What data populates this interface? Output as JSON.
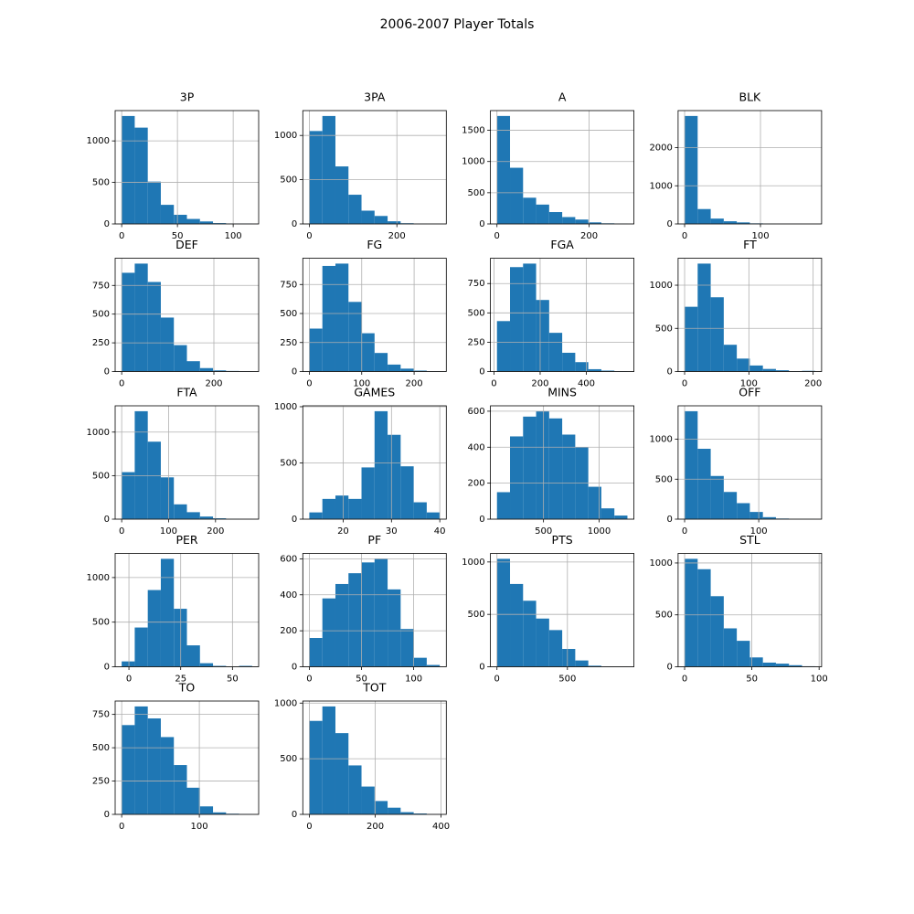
{
  "title": "2006-2007 Player Totals",
  "chart_data": [
    {
      "type": "histogram",
      "title": "3P",
      "color": "#1f77b4",
      "grid": true,
      "bins": [
        0,
        11.7,
        23.4,
        35.1,
        46.8,
        58.5,
        70.2,
        81.9,
        93.6,
        105.3,
        117
      ],
      "counts": [
        1300,
        1160,
        510,
        230,
        110,
        60,
        30,
        10,
        5,
        5
      ],
      "xlim": [
        -5.85,
        122.85
      ],
      "ylim": [
        0,
        1365
      ],
      "xticks": [
        0,
        50,
        100
      ],
      "yticks": [
        0,
        500,
        1000
      ]
    },
    {
      "type": "histogram",
      "title": "3PA",
      "color": "#1f77b4",
      "grid": true,
      "bins": [
        0,
        29.8,
        59.6,
        89.4,
        119.2,
        149,
        178.8,
        208.6,
        238.4,
        268.2,
        298
      ],
      "counts": [
        1050,
        1220,
        650,
        330,
        150,
        90,
        30,
        8,
        3,
        2
      ],
      "xlim": [
        -14.9,
        312.9
      ],
      "ylim": [
        0,
        1281
      ],
      "xticks": [
        0,
        200
      ],
      "yticks": [
        0,
        500,
        1000
      ]
    },
    {
      "type": "histogram",
      "title": "A",
      "color": "#1f77b4",
      "grid": true,
      "bins": [
        0,
        28.3,
        56.6,
        84.9,
        113.2,
        141.5,
        169.8,
        198.1,
        226.4,
        254.7,
        283
      ],
      "counts": [
        1730,
        900,
        420,
        310,
        190,
        110,
        70,
        25,
        10,
        5
      ],
      "xlim": [
        -14.15,
        297.15
      ],
      "ylim": [
        0,
        1816
      ],
      "xticks": [
        0,
        200
      ],
      "yticks": [
        0,
        500,
        1000,
        1500
      ]
    },
    {
      "type": "histogram",
      "title": "BLK",
      "color": "#1f77b4",
      "grid": true,
      "bins": [
        0,
        17.2,
        34.4,
        51.6,
        68.8,
        86,
        103.2,
        120.4,
        137.6,
        154.8,
        172
      ],
      "counts": [
        2830,
        390,
        140,
        70,
        40,
        15,
        5,
        3,
        2,
        1
      ],
      "xlim": [
        -8.6,
        180.6
      ],
      "ylim": [
        0,
        2971
      ],
      "xticks": [
        0,
        100
      ],
      "yticks": [
        0,
        1000,
        2000
      ]
    },
    {
      "type": "histogram",
      "title": "DEF",
      "color": "#1f77b4",
      "grid": true,
      "bins": [
        0,
        28.3,
        56.6,
        84.9,
        113.2,
        141.5,
        169.8,
        198.1,
        226.4,
        254.7,
        283
      ],
      "counts": [
        860,
        940,
        780,
        470,
        230,
        90,
        30,
        10,
        5,
        3
      ],
      "xlim": [
        -14.15,
        297.15
      ],
      "ylim": [
        0,
        987
      ],
      "xticks": [
        0,
        200
      ],
      "yticks": [
        0,
        250,
        500,
        750
      ]
    },
    {
      "type": "histogram",
      "title": "FG",
      "color": "#1f77b4",
      "grid": true,
      "bins": [
        0,
        24.9,
        49.8,
        74.7,
        99.6,
        124.5,
        149.4,
        174.3,
        199.2,
        224.1,
        249
      ],
      "counts": [
        370,
        910,
        930,
        600,
        330,
        160,
        60,
        25,
        8,
        3
      ],
      "xlim": [
        -12.45,
        261.45
      ],
      "ylim": [
        0,
        976.5
      ],
      "xticks": [
        0,
        100,
        200
      ],
      "yticks": [
        0,
        250,
        500,
        750
      ]
    },
    {
      "type": "histogram",
      "title": "FGA",
      "color": "#1f77b4",
      "grid": true,
      "bins": [
        13,
        69.5,
        126,
        182.5,
        239,
        295.5,
        352,
        408.5,
        465,
        521.5,
        578
      ],
      "counts": [
        430,
        890,
        920,
        610,
        330,
        160,
        80,
        20,
        8,
        3
      ],
      "xlim": [
        -15.25,
        606.25
      ],
      "ylim": [
        0,
        966
      ],
      "xticks": [
        0,
        200,
        400
      ],
      "yticks": [
        0,
        250,
        500,
        750
      ]
    },
    {
      "type": "histogram",
      "title": "FT",
      "color": "#1f77b4",
      "grid": true,
      "bins": [
        0,
        20.3,
        40.6,
        60.9,
        81.2,
        101.5,
        121.8,
        142.1,
        162.4,
        182.7,
        203
      ],
      "counts": [
        750,
        1250,
        860,
        310,
        150,
        70,
        30,
        15,
        5,
        8
      ],
      "xlim": [
        -10.15,
        213.15
      ],
      "ylim": [
        0,
        1312.5
      ],
      "xticks": [
        0,
        100,
        200
      ],
      "yticks": [
        0,
        500,
        1000
      ]
    },
    {
      "type": "histogram",
      "title": "FTA",
      "color": "#1f77b4",
      "grid": true,
      "bins": [
        0,
        27.8,
        55.6,
        83.4,
        111.2,
        139,
        166.8,
        194.6,
        222.4,
        250.2,
        278
      ],
      "counts": [
        540,
        1240,
        890,
        480,
        170,
        80,
        30,
        10,
        5,
        3
      ],
      "xlim": [
        -13.9,
        291.9
      ],
      "ylim": [
        0,
        1302
      ],
      "xticks": [
        0,
        100,
        200
      ],
      "yticks": [
        0,
        500,
        1000
      ]
    },
    {
      "type": "histogram",
      "title": "GAMES",
      "color": "#1f77b4",
      "grid": true,
      "bins": [
        13,
        15.7,
        18.4,
        21.1,
        23.8,
        26.5,
        29.2,
        31.9,
        34.6,
        37.3,
        40
      ],
      "counts": [
        60,
        180,
        210,
        180,
        460,
        960,
        750,
        470,
        150,
        60
      ],
      "xlim": [
        11.65,
        41.35
      ],
      "ylim": [
        0,
        1008
      ],
      "xticks": [
        20,
        30,
        40
      ],
      "yticks": [
        0,
        500,
        1000
      ]
    },
    {
      "type": "histogram",
      "title": "MINS",
      "color": "#1f77b4",
      "grid": true,
      "bins": [
        82,
        199.2,
        316.4,
        433.6,
        550.8,
        668,
        785.2,
        902.4,
        1019.6,
        1136.8,
        1254
      ],
      "counts": [
        150,
        460,
        570,
        600,
        560,
        470,
        400,
        180,
        60,
        20
      ],
      "xlim": [
        23.4,
        1312.6
      ],
      "ylim": [
        0,
        630
      ],
      "xticks": [
        500,
        1000
      ],
      "yticks": [
        0,
        200,
        400,
        600
      ]
    },
    {
      "type": "histogram",
      "title": "OFF",
      "color": "#1f77b4",
      "grid": true,
      "bins": [
        0,
        17.6,
        35.2,
        52.8,
        70.4,
        88,
        105.6,
        123.2,
        140.8,
        158.4,
        176
      ],
      "counts": [
        1350,
        880,
        540,
        340,
        200,
        90,
        25,
        8,
        3,
        2
      ],
      "xlim": [
        -8.8,
        184.8
      ],
      "ylim": [
        0,
        1417.5
      ],
      "xticks": [
        0,
        100
      ],
      "yticks": [
        0,
        500,
        1000
      ]
    },
    {
      "type": "histogram",
      "title": "PER",
      "color": "#1f77b4",
      "grid": true,
      "bins": [
        -3.5,
        2.8,
        9.1,
        15.4,
        21.7,
        28,
        34.3,
        40.6,
        46.9,
        53.2,
        59.5
      ],
      "counts": [
        60,
        440,
        860,
        1210,
        650,
        240,
        40,
        10,
        3,
        10
      ],
      "xlim": [
        -6.65,
        62.65
      ],
      "ylim": [
        0,
        1270.5
      ],
      "xticks": [
        0,
        25,
        50
      ],
      "yticks": [
        0,
        500,
        1000
      ]
    },
    {
      "type": "histogram",
      "title": "PF",
      "color": "#1f77b4",
      "grid": true,
      "bins": [
        0,
        12.5,
        25,
        37.5,
        50,
        62.5,
        75,
        87.5,
        100,
        112.5,
        125
      ],
      "counts": [
        160,
        380,
        460,
        520,
        580,
        600,
        430,
        210,
        50,
        10
      ],
      "xlim": [
        -6.25,
        131.25
      ],
      "ylim": [
        0,
        630
      ],
      "xticks": [
        0,
        50,
        100
      ],
      "yticks": [
        0,
        200,
        400,
        600
      ]
    },
    {
      "type": "histogram",
      "title": "PTS",
      "color": "#1f77b4",
      "grid": true,
      "bins": [
        0,
        92.6,
        185.2,
        277.8,
        370.4,
        463,
        555.6,
        648.2,
        740.8,
        833.4,
        926
      ],
      "counts": [
        1030,
        790,
        630,
        460,
        350,
        170,
        60,
        10,
        3,
        2
      ],
      "xlim": [
        -46.3,
        972.3
      ],
      "ylim": [
        0,
        1081.5
      ],
      "xticks": [
        0,
        500
      ],
      "yticks": [
        0,
        500,
        1000
      ]
    },
    {
      "type": "histogram",
      "title": "STL",
      "color": "#1f77b4",
      "grid": true,
      "bins": [
        0,
        9.7,
        19.4,
        29.1,
        38.8,
        48.5,
        58.2,
        67.9,
        77.6,
        87.3,
        97
      ],
      "counts": [
        1040,
        940,
        680,
        370,
        250,
        90,
        40,
        30,
        15,
        5
      ],
      "xlim": [
        -4.85,
        101.85
      ],
      "ylim": [
        0,
        1092
      ],
      "xticks": [
        0,
        50,
        100
      ],
      "yticks": [
        0,
        500,
        1000
      ]
    },
    {
      "type": "histogram",
      "title": "TO",
      "color": "#1f77b4",
      "grid": true,
      "bins": [
        0,
        16.8,
        33.6,
        50.4,
        67.2,
        84,
        100.8,
        117.6,
        134.4,
        151.2,
        168
      ],
      "counts": [
        670,
        810,
        720,
        580,
        370,
        200,
        60,
        15,
        5,
        3
      ],
      "xlim": [
        -8.4,
        176.4
      ],
      "ylim": [
        0,
        850.5
      ],
      "xticks": [
        0,
        100
      ],
      "yticks": [
        0,
        250,
        500,
        750
      ]
    },
    {
      "type": "histogram",
      "title": "TOT",
      "color": "#1f77b4",
      "grid": true,
      "bins": [
        0,
        39.6,
        79.2,
        118.8,
        158.4,
        198,
        237.6,
        277.2,
        316.8,
        356.4,
        396
      ],
      "counts": [
        840,
        970,
        730,
        440,
        250,
        120,
        60,
        20,
        8,
        3
      ],
      "xlim": [
        -19.8,
        415.8
      ],
      "ylim": [
        0,
        1018.5
      ],
      "xticks": [
        0,
        200,
        400
      ],
      "yticks": [
        0,
        500,
        1000
      ]
    }
  ]
}
